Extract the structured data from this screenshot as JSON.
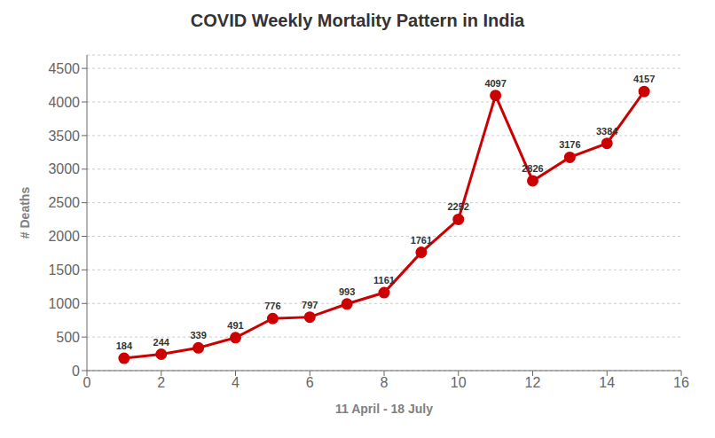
{
  "chart_data": {
    "type": "line",
    "title": "COVID Weekly Mortality Pattern in India",
    "xlabel": "11 April - 18 July",
    "ylabel": "# Deaths",
    "x": [
      1,
      2,
      3,
      4,
      5,
      6,
      7,
      8,
      9,
      10,
      11,
      12,
      13,
      14,
      15
    ],
    "values": [
      184,
      244,
      339,
      491,
      776,
      797,
      993,
      1161,
      1761,
      2252,
      4097,
      2826,
      3176,
      3384,
      4157
    ],
    "color": "#cc0000",
    "marker": "circle",
    "xlim": [
      0,
      16
    ],
    "ylim": [
      0,
      4700
    ],
    "xticks": [
      0,
      2,
      4,
      6,
      8,
      10,
      12,
      14,
      16
    ],
    "yticks": [
      0,
      500,
      1000,
      1500,
      2000,
      2500,
      3000,
      3500,
      4000,
      4500
    ],
    "grid": "y",
    "data_labels": true
  }
}
